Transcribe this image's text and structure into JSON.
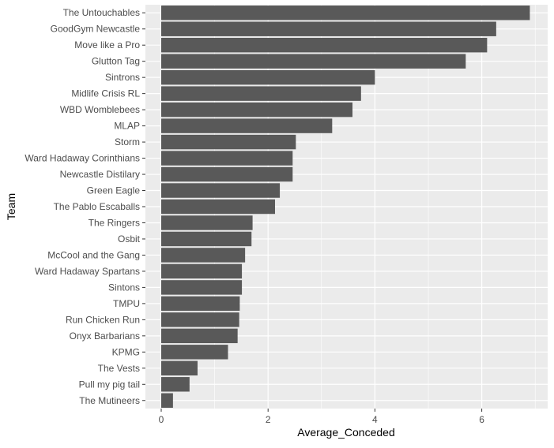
{
  "chart_data": {
    "type": "bar",
    "orientation": "horizontal",
    "xlabel": "Average_Conceded",
    "ylabel": "Team",
    "xlim": [
      0,
      7.2
    ],
    "x_ticks": [
      0,
      2,
      4,
      6
    ],
    "grid": true,
    "background_color": "#EBEBEB",
    "grid_color": "#FFFFFF",
    "bar_color": "#595959",
    "categories": [
      "The Untouchables",
      "GoodGym Newcastle",
      "Move like a Pro",
      "Glutton Tag",
      "Sintrons",
      "Midlife Crisis RL",
      "WBD Womblebees",
      "MLAP",
      "Storm",
      "Ward Hadaway Corinthians",
      "Newcastle Distilary",
      "Green Eagle",
      "The Pablo Escaballs",
      "The Ringers",
      "Osbit",
      "McCool and the Gang",
      "Ward Hadaway Spartans",
      "Sintons",
      "TMPU",
      "Run Chicken Run",
      "Onyx Barbarians",
      "KPMG",
      "The Vests",
      "Pull my pig tail",
      "The Mutineers"
    ],
    "values": [
      6.9,
      6.27,
      6.1,
      5.7,
      4.0,
      3.74,
      3.58,
      3.2,
      2.52,
      2.46,
      2.46,
      2.22,
      2.13,
      1.71,
      1.69,
      1.57,
      1.51,
      1.51,
      1.47,
      1.46,
      1.43,
      1.25,
      0.68,
      0.53,
      0.22
    ]
  }
}
